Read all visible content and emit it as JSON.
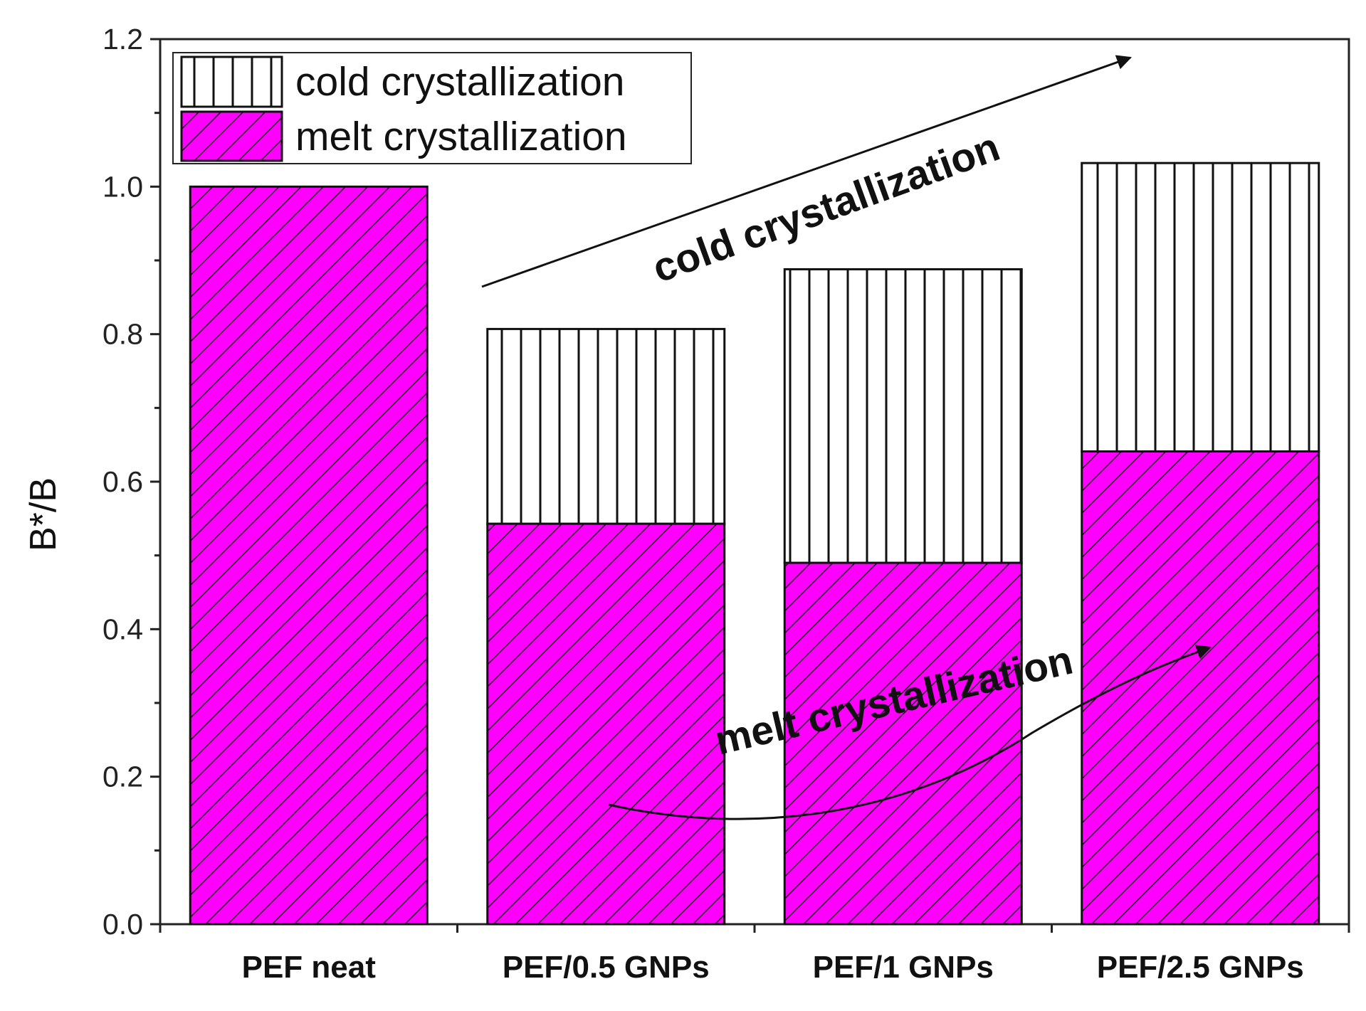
{
  "chart_data": {
    "type": "bar",
    "stacked": true,
    "title": "",
    "xlabel": "",
    "ylabel": "B*/B",
    "ylim": [
      0,
      1.2
    ],
    "yticks": [
      "0.0",
      "0.2",
      "0.4",
      "0.6",
      "0.8",
      "1.0",
      "1.2"
    ],
    "categories": [
      "PEF neat",
      "PEF/0.5 GNPs",
      "PEF/1 GNPs",
      "PEF/2.5 GNPs"
    ],
    "series": [
      {
        "name": "melt crystallization",
        "color": "#ff00ff",
        "pattern": "diagonal-hatch",
        "values": [
          1.0,
          0.543,
          0.49,
          0.641
        ]
      },
      {
        "name": "cold crystallization",
        "color": "#ffffff",
        "pattern": "vertical-lines",
        "values": [
          0.0,
          0.264,
          0.398,
          0.391
        ]
      }
    ],
    "legend": {
      "position": "top-left",
      "entries": [
        "cold crystallization",
        "melt crystallization"
      ]
    },
    "annotations": [
      {
        "text": "cold crystallization",
        "style": "straight-arrow-rising"
      },
      {
        "text": "melt crystallization",
        "style": "curved-arrow-rising"
      }
    ]
  }
}
